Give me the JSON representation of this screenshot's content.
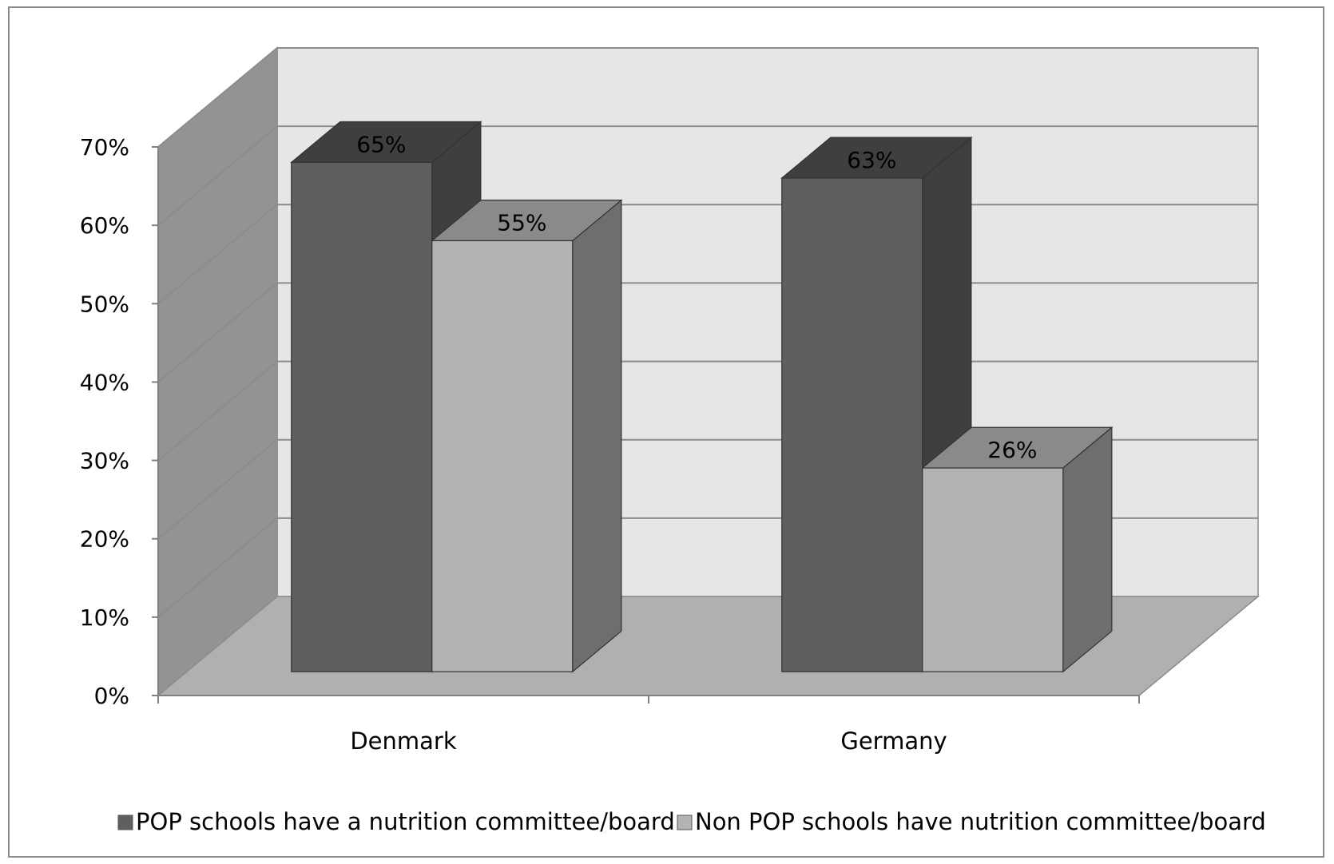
{
  "chart_data": {
    "type": "bar",
    "categories": [
      "Denmark",
      "Germany"
    ],
    "series": [
      {
        "name": "POP schools have a nutrition committee/board",
        "values": [
          65,
          63
        ],
        "labels": [
          "65%",
          "63%"
        ]
      },
      {
        "name": "Non POP schools have nutrition committee/board",
        "values": [
          55,
          26
        ],
        "labels": [
          "55%",
          "26%"
        ]
      }
    ],
    "ylim": [
      0,
      70
    ],
    "yticks": [
      "0%",
      "10%",
      "20%",
      "30%",
      "40%",
      "50%",
      "60%",
      "70%"
    ],
    "grid": true,
    "legend_position": "bottom",
    "style": "3d-clustered-column"
  },
  "colors": {
    "series1_front": "#5f5f5f",
    "series1_top": "#3f3f3f",
    "series1_side": "#3f3f3f",
    "series2_front": "#b3b3b3",
    "series2_top": "#8a8a8a",
    "series2_side": "#6e6e6e",
    "back_wall": "#e6e6e6",
    "side_wall": "#939393",
    "floor": "#b0b0b0",
    "gridline": "#8c8c8c"
  }
}
